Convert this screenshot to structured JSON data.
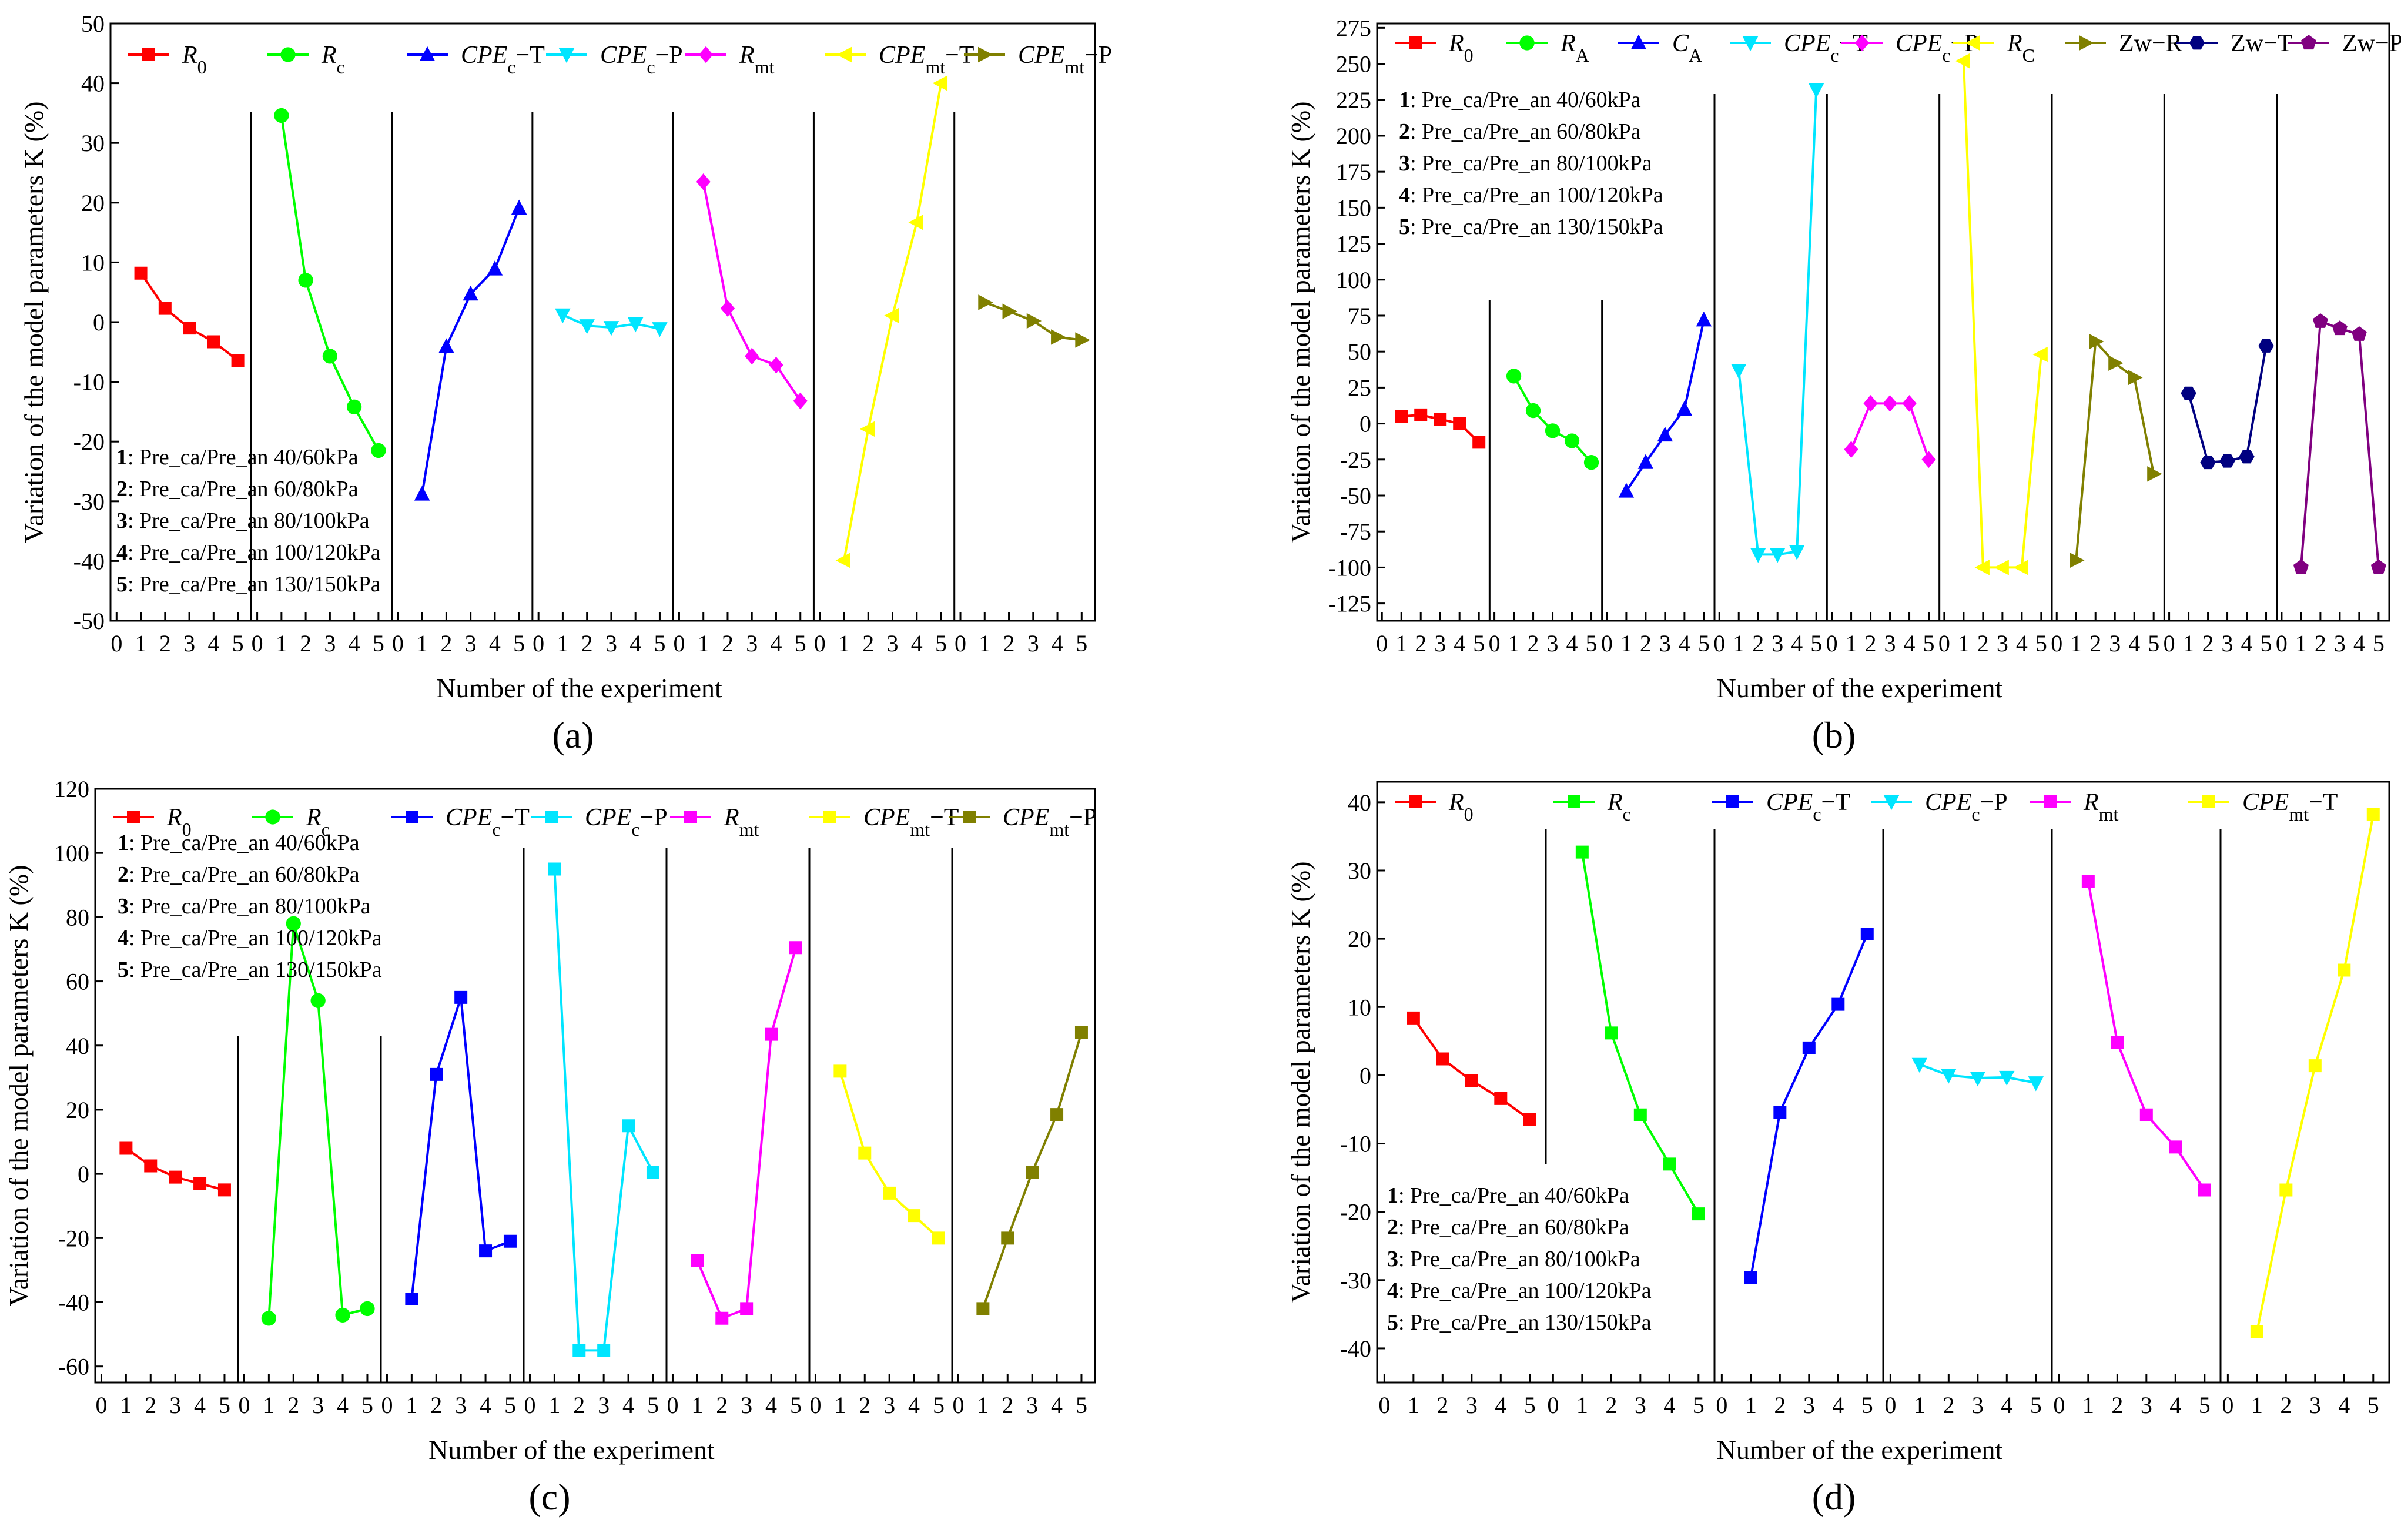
{
  "figure": {
    "condition_legend": [
      {
        "num": "1",
        "text": ": Pre_ca/Pre_an 40/60kPa"
      },
      {
        "num": "2",
        "text": ": Pre_ca/Pre_an 60/80kPa"
      },
      {
        "num": "3",
        "text": ": Pre_ca/Pre_an 80/100kPa"
      },
      {
        "num": "4",
        "text": ": Pre_ca/Pre_an 100/120kPa"
      },
      {
        "num": "5",
        "text": ": Pre_ca/Pre_an 130/150kPa"
      }
    ]
  },
  "chart_data": [
    {
      "panel": "a",
      "panel_label": "(a)",
      "type": "line",
      "xlabel": "Number of the experiment",
      "ylabel": "Variation of the model parameters K (%)",
      "ylim": [
        -50,
        50
      ],
      "yticks": [
        -50,
        -40,
        -30,
        -20,
        -10,
        0,
        10,
        20,
        30,
        40,
        50
      ],
      "x": [
        1,
        2,
        3,
        4,
        5
      ],
      "series": [
        {
          "name": "R0",
          "base": "R",
          "sub": "0",
          "color": "#ff0000",
          "marker": "square",
          "values": [
            8.2,
            2.3,
            -1.0,
            -3.3,
            -6.4
          ]
        },
        {
          "name": "Rc",
          "base": "R",
          "sub": "c",
          "color": "#00ff00",
          "marker": "circle",
          "values": [
            34.6,
            7.0,
            -5.7,
            -14.2,
            -21.5
          ]
        },
        {
          "name": "CPEc−T",
          "base": "CPE",
          "sub": "c",
          "suffix": "−T",
          "color": "#0000ff",
          "marker": "triangle-up",
          "values": [
            -28.8,
            -4.1,
            4.7,
            8.9,
            19.1
          ]
        },
        {
          "name": "CPEc−P",
          "base": "CPE",
          "sub": "c",
          "suffix": "−P",
          "color": "#00e5ff",
          "marker": "triangle-down",
          "values": [
            1.2,
            -0.6,
            -0.9,
            -0.3,
            -1.1
          ]
        },
        {
          "name": "Rmt",
          "base": "R",
          "sub": "mt",
          "color": "#ff00ff",
          "marker": "diamond",
          "values": [
            23.5,
            2.3,
            -5.7,
            -7.2,
            -13.2
          ]
        },
        {
          "name": "CPEmt−T",
          "base": "CPE",
          "sub": "mt",
          "suffix": "−T",
          "color": "#ffff00",
          "marker": "triangle-left",
          "values": [
            -39.9,
            -17.9,
            1.1,
            16.7,
            40.0
          ]
        },
        {
          "name": "CPEmt−P",
          "base": "CPE",
          "sub": "mt",
          "suffix": "−P",
          "color": "#808000",
          "marker": "triangle-right",
          "values": [
            3.3,
            1.8,
            0.2,
            -2.5,
            -3.0
          ]
        }
      ]
    },
    {
      "panel": "b",
      "panel_label": "(b)",
      "type": "line",
      "xlabel": "Number of the experiment",
      "ylabel": "Variation of the model parameters K (%)",
      "ylim": [
        -137,
        278
      ],
      "yticks": [
        -125,
        -100,
        -75,
        -50,
        -25,
        0,
        25,
        50,
        75,
        100,
        125,
        150,
        175,
        200,
        225,
        250,
        275
      ],
      "x": [
        1,
        2,
        3,
        4,
        5
      ],
      "series": [
        {
          "name": "R0",
          "base": "R",
          "sub": "0",
          "color": "#ff0000",
          "marker": "square",
          "values": [
            5,
            6,
            3,
            0,
            -13
          ]
        },
        {
          "name": "RA",
          "base": "R",
          "sub": "A",
          "color": "#00ff00",
          "marker": "circle",
          "values": [
            33,
            9,
            -5,
            -12,
            -27
          ]
        },
        {
          "name": "CA",
          "base": "C",
          "sub": "A",
          "color": "#0000ff",
          "marker": "triangle-up",
          "values": [
            -47,
            -27,
            -8,
            10,
            72
          ]
        },
        {
          "name": "CPEc−T",
          "base": "CPE",
          "sub": "c",
          "suffix": "−T",
          "color": "#00e5ff",
          "marker": "triangle-down",
          "values": [
            37,
            -91,
            -91,
            -89,
            232
          ]
        },
        {
          "name": "CPEc−P",
          "base": "CPE",
          "sub": "c",
          "suffix": "−P",
          "color": "#ff00ff",
          "marker": "diamond",
          "values": [
            -18,
            14,
            14,
            14,
            -25
          ]
        },
        {
          "name": "RC",
          "base": "R",
          "sub": "C",
          "color": "#ffff00",
          "marker": "triangle-left",
          "values": [
            252,
            -100,
            -100,
            -100,
            48
          ]
        },
        {
          "name": "Zw−R",
          "base": "Zw−R",
          "color": "#808000",
          "marker": "triangle-right",
          "values": [
            -95,
            57,
            42,
            32,
            -35
          ]
        },
        {
          "name": "Zw−T",
          "base": "Zw−T",
          "color": "#000080",
          "marker": "hexagon",
          "values": [
            21,
            -27,
            -26,
            -23,
            54
          ]
        },
        {
          "name": "Zw−P",
          "base": "Zw−P",
          "color": "#800080",
          "marker": "pentagon",
          "values": [
            -100,
            71,
            66,
            62,
            -100
          ]
        }
      ]
    },
    {
      "panel": "c",
      "panel_label": "(c)",
      "type": "line",
      "xlabel": "Number of the experiment",
      "ylabel": "Variation of the model parameters K (%)",
      "ylim": [
        -65,
        120
      ],
      "yticks": [
        -60,
        -40,
        -20,
        0,
        20,
        40,
        60,
        80,
        100,
        120
      ],
      "x": [
        1,
        2,
        3,
        4,
        5
      ],
      "series": [
        {
          "name": "R0",
          "base": "R",
          "sub": "0",
          "color": "#ff0000",
          "marker": "square",
          "values": [
            8,
            2.5,
            -1,
            -3,
            -5
          ]
        },
        {
          "name": "Rc",
          "base": "R",
          "sub": "c",
          "color": "#00ff00",
          "marker": "circle",
          "values": [
            -45,
            78,
            54,
            -44,
            -42
          ]
        },
        {
          "name": "CPEc−T",
          "base": "CPE",
          "sub": "c",
          "suffix": "−T",
          "color": "#0000ff",
          "marker": "square",
          "values": [
            -39,
            31,
            55,
            -24,
            -21
          ]
        },
        {
          "name": "CPEc−P",
          "base": "CPE",
          "sub": "c",
          "suffix": "−P",
          "color": "#00e5ff",
          "marker": "square",
          "values": [
            95,
            -55,
            -55,
            15,
            0.5
          ]
        },
        {
          "name": "Rmt",
          "base": "R",
          "sub": "mt",
          "color": "#ff00ff",
          "marker": "square",
          "values": [
            -27,
            -45,
            -42,
            43.5,
            70.5
          ]
        },
        {
          "name": "CPEmt−T",
          "base": "CPE",
          "sub": "mt",
          "suffix": "−T",
          "color": "#ffff00",
          "marker": "square",
          "values": [
            32,
            6.5,
            -6,
            -13,
            -20
          ]
        },
        {
          "name": "CPEmt−P",
          "base": "CPE",
          "sub": "mt",
          "suffix": "−P",
          "color": "#808000",
          "marker": "square",
          "values": [
            -42,
            -20,
            0.5,
            18.5,
            44
          ]
        }
      ]
    },
    {
      "panel": "d",
      "panel_label": "(d)",
      "type": "line",
      "xlabel": "Number of the experiment",
      "ylabel": "Variation of the model parameters K (%)",
      "ylim": [
        -45,
        43
      ],
      "yticks": [
        -40,
        -30,
        -20,
        -10,
        0,
        10,
        20,
        30,
        40
      ],
      "x": [
        1,
        2,
        3,
        4,
        5
      ],
      "series": [
        {
          "name": "R0",
          "base": "R",
          "sub": "0",
          "color": "#ff0000",
          "marker": "square",
          "values": [
            8.4,
            2.4,
            -0.8,
            -3.4,
            -6.5
          ]
        },
        {
          "name": "Rc",
          "base": "R",
          "sub": "c",
          "color": "#00ff00",
          "marker": "square",
          "values": [
            32.7,
            6.2,
            -5.8,
            -13.0,
            -20.3
          ]
        },
        {
          "name": "CPEc−T",
          "base": "CPE",
          "sub": "c",
          "suffix": "−T",
          "color": "#0000ff",
          "marker": "square",
          "values": [
            -29.6,
            -5.4,
            4.0,
            10.4,
            20.7
          ]
        },
        {
          "name": "CPEc−P",
          "base": "CPE",
          "sub": "c",
          "suffix": "−P",
          "color": "#00e5ff",
          "marker": "triangle-down",
          "values": [
            1.6,
            0.0,
            -0.4,
            -0.3,
            -1.1
          ]
        },
        {
          "name": "Rmt",
          "base": "R",
          "sub": "mt",
          "color": "#ff00ff",
          "marker": "square",
          "values": [
            28.4,
            4.8,
            -5.8,
            -10.5,
            -16.8
          ]
        },
        {
          "name": "CPEmt−T",
          "base": "CPE",
          "sub": "mt",
          "suffix": "−T",
          "color": "#ffff00",
          "marker": "square",
          "values": [
            -37.6,
            -16.8,
            1.4,
            15.4,
            38.2
          ]
        }
      ]
    }
  ]
}
